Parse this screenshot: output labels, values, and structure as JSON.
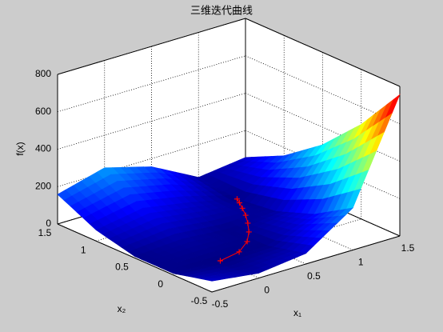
{
  "chart_data": {
    "type": "surface",
    "title": "三维迭代曲线",
    "xlabel": "x₁",
    "ylabel": "x₂",
    "zlabel": "f(x)",
    "x": [
      -0.5,
      0,
      0.5,
      1,
      1.5
    ],
    "y": [
      -0.5,
      0,
      0.5,
      1,
      1.5
    ],
    "z": [
      [
        58.5,
        8.5,
        8.5,
        58.5,
        158.5
      ],
      [
        26,
        1,
        26,
        101,
        226
      ],
      [
        56.5,
        6.5,
        6.5,
        56.5,
        156.5
      ],
      [
        225,
        100,
        25,
        0,
        25
      ],
      [
        756.5,
        506.5,
        306.5,
        156.5,
        56.5
      ]
    ],
    "xlim": [
      -0.5,
      1.5
    ],
    "ylim": [
      -0.5,
      1.5
    ],
    "zlim": [
      0,
      800
    ],
    "xticks": [
      -0.5,
      0,
      0.5,
      1,
      1.5
    ],
    "yticks": [
      -0.5,
      0,
      0.5,
      1,
      1.5
    ],
    "zticks": [
      0,
      200,
      400,
      600,
      800
    ],
    "colormap": "jet",
    "grid": true,
    "path": {
      "color": "#ff0000",
      "marker": "+",
      "x": [
        0,
        0.25,
        0.45,
        0.6,
        0.72,
        0.82,
        0.9,
        0.96,
        1
      ],
      "y": [
        0,
        0.06,
        0.2,
        0.36,
        0.52,
        0.67,
        0.81,
        0.92,
        1
      ],
      "z": [
        1,
        0.56,
        0.3,
        0.16,
        0.08,
        0.03,
        0.01,
        0.002,
        0
      ]
    }
  }
}
